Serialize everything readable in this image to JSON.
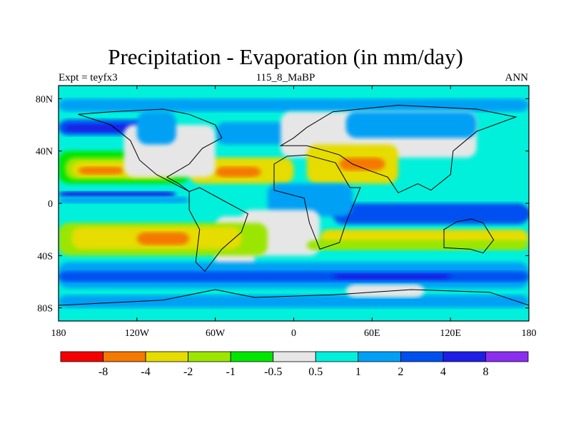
{
  "title": "Precipitation - Evaporation (in mm/day)",
  "left_label": "Expt = teyfx3",
  "center_label": "115_8_MaBP",
  "right_label": "ANN",
  "map": {
    "lon_ticks": [
      {
        "value": -180,
        "label": "180"
      },
      {
        "value": -120,
        "label": "120W"
      },
      {
        "value": -60,
        "label": "60W"
      },
      {
        "value": 0,
        "label": "0"
      },
      {
        "value": 60,
        "label": "60E"
      },
      {
        "value": 120,
        "label": "120E"
      },
      {
        "value": 180,
        "label": "180"
      }
    ],
    "lat_ticks": [
      {
        "value": 80,
        "label": "80N"
      },
      {
        "value": 40,
        "label": "40N"
      },
      {
        "value": 0,
        "label": "0"
      },
      {
        "value": -40,
        "label": "40S"
      },
      {
        "value": -80,
        "label": "80S"
      }
    ],
    "lon_range": [
      -180,
      180
    ],
    "lat_range": [
      -90,
      90
    ]
  },
  "colorbar": {
    "colors": [
      "#f50000",
      "#f57800",
      "#e6dc00",
      "#9be600",
      "#00e600",
      "#e6e6e6",
      "#00f0dc",
      "#00a0f5",
      "#0050f0",
      "#1e1ee6",
      "#8c2ef0"
    ],
    "labels": [
      "-8",
      "-4",
      "-2",
      "-1",
      "-0.5",
      "0.5",
      "1",
      "2",
      "4",
      "8"
    ]
  },
  "regions": [
    {
      "name": "background-ocean",
      "color": "#00f0dc",
      "lon": [
        -180,
        180
      ],
      "lat": [
        -90,
        90
      ]
    },
    {
      "name": "north-polar-band",
      "color": "#00a0f5",
      "lon": [
        -180,
        180
      ],
      "lat": [
        70,
        80
      ]
    },
    {
      "name": "north-mid-storm-track-pacific",
      "color": "#0050f0",
      "lon": [
        -180,
        -100
      ],
      "lat": [
        52,
        64
      ]
    },
    {
      "name": "north-storm-track-pacific-core",
      "color": "#1e1ee6",
      "lon": [
        -175,
        -110
      ],
      "lat": [
        55,
        60
      ]
    },
    {
      "name": "north-storm-track-atlantic",
      "color": "#00a0f5",
      "lon": [
        -60,
        10
      ],
      "lat": [
        45,
        62
      ]
    },
    {
      "name": "north-subtropics-pacific-green",
      "color": "#00e600",
      "lon": [
        -180,
        -80
      ],
      "lat": [
        15,
        40
      ]
    },
    {
      "name": "north-subtropics-pacific-lime",
      "color": "#9be600",
      "lon": [
        -175,
        -90
      ],
      "lat": [
        18,
        35
      ]
    },
    {
      "name": "north-subtropics-pacific-yellow",
      "color": "#e6dc00",
      "lon": [
        -170,
        -100
      ],
      "lat": [
        20,
        32
      ]
    },
    {
      "name": "north-subtropics-pacific-orange",
      "color": "#f57800",
      "lon": [
        -165,
        -130
      ],
      "lat": [
        22,
        28
      ]
    },
    {
      "name": "north-atlantic-subtropics",
      "color": "#e6dc00",
      "lon": [
        -80,
        0
      ],
      "lat": [
        15,
        35
      ]
    },
    {
      "name": "north-atlantic-subtropics-orange",
      "color": "#f57800",
      "lon": [
        -60,
        -25
      ],
      "lat": [
        20,
        28
      ]
    },
    {
      "name": "eurasia-land-grey",
      "color": "#e6e6e6",
      "lon": [
        -10,
        140
      ],
      "lat": [
        35,
        70
      ]
    },
    {
      "name": "eurasia-blue",
      "color": "#00a0f5",
      "lon": [
        40,
        140
      ],
      "lat": [
        50,
        70
      ]
    },
    {
      "name": "middle-east-yellow",
      "color": "#e6dc00",
      "lon": [
        10,
        80
      ],
      "lat": [
        15,
        45
      ]
    },
    {
      "name": "middle-east-orange",
      "color": "#f57800",
      "lon": [
        35,
        70
      ],
      "lat": [
        25,
        35
      ]
    },
    {
      "name": "north-america-grey",
      "color": "#e6e6e6",
      "lon": [
        -130,
        -60
      ],
      "lat": [
        20,
        60
      ]
    },
    {
      "name": "north-america-blue",
      "color": "#00a0f5",
      "lon": [
        -120,
        -90
      ],
      "lat": [
        45,
        70
      ]
    },
    {
      "name": "equatorial-itcz-east-pacific",
      "color": "#1e1ee6",
      "lon": [
        -180,
        -90
      ],
      "lat": [
        5,
        9
      ]
    },
    {
      "name": "equatorial-pacific-blue",
      "color": "#00a0f5",
      "lon": [
        -180,
        -80
      ],
      "lat": [
        0,
        5
      ]
    },
    {
      "name": "equatorial-indian-ocean",
      "color": "#1e1ee6",
      "lon": [
        40,
        180
      ],
      "lat": [
        -12,
        -4
      ]
    },
    {
      "name": "equatorial-indian-ocean-outer",
      "color": "#0050f0",
      "lon": [
        30,
        180
      ],
      "lat": [
        -16,
        0
      ]
    },
    {
      "name": "africa-land-blue",
      "color": "#00a0f5",
      "lon": [
        -20,
        45
      ],
      "lat": [
        -10,
        15
      ]
    },
    {
      "name": "africa-grey",
      "color": "#e6e6e6",
      "lon": [
        -40,
        20
      ],
      "lat": [
        -40,
        -5
      ]
    },
    {
      "name": "south-america-grey",
      "color": "#e6e6e6",
      "lon": [
        -60,
        -30
      ],
      "lat": [
        -55,
        -10
      ]
    },
    {
      "name": "south-subtropics-pacific",
      "color": "#9be600",
      "lon": [
        -180,
        -20
      ],
      "lat": [
        -40,
        -15
      ]
    },
    {
      "name": "south-subtropics-pacific-yellow",
      "color": "#e6dc00",
      "lon": [
        -170,
        -40
      ],
      "lat": [
        -35,
        -18
      ]
    },
    {
      "name": "south-subtropics-pacific-orange",
      "color": "#f57800",
      "lon": [
        -120,
        -80
      ],
      "lat": [
        -32,
        -22
      ]
    },
    {
      "name": "south-indian-subtropics",
      "color": "#e6dc00",
      "lon": [
        20,
        180
      ],
      "lat": [
        -32,
        -20
      ]
    },
    {
      "name": "south-indian-subtropics-green",
      "color": "#9be600",
      "lon": [
        10,
        180
      ],
      "lat": [
        -36,
        -28
      ]
    },
    {
      "name": "southern-ocean-blue",
      "color": "#00a0f5",
      "lon": [
        -180,
        180
      ],
      "lat": [
        -65,
        -45
      ]
    },
    {
      "name": "southern-ocean-storm",
      "color": "#0050f0",
      "lon": [
        -180,
        180
      ],
      "lat": [
        -60,
        -52
      ]
    },
    {
      "name": "southern-ocean-core",
      "color": "#1e1ee6",
      "lon": [
        30,
        120
      ],
      "lat": [
        -58,
        -54
      ]
    },
    {
      "name": "antarctic-band",
      "color": "#00a0f5",
      "lon": [
        -180,
        180
      ],
      "lat": [
        -80,
        -70
      ]
    },
    {
      "name": "antarctica-grey",
      "color": "#e6e6e6",
      "lon": [
        40,
        100
      ],
      "lat": [
        -72,
        -62
      ]
    }
  ]
}
